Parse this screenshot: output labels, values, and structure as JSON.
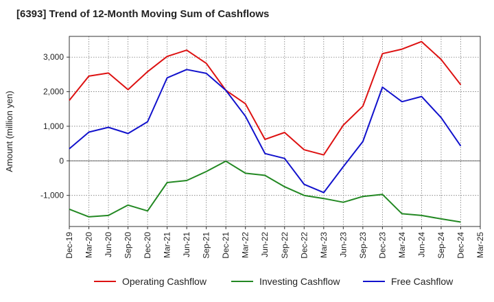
{
  "chart_data": {
    "type": "line",
    "title": "[6393]  Trend of 12-Month Moving Sum of Cashflows",
    "xlabel": "",
    "ylabel": "Amount (million yen)",
    "ylim": [
      -1900,
      3600
    ],
    "yticks": [
      -1000,
      0,
      1000,
      2000,
      3000
    ],
    "ytick_labels": [
      "-1,000",
      "0",
      "1,000",
      "2,000",
      "3,000"
    ],
    "categories": [
      "Dec-19",
      "Mar-20",
      "Jun-20",
      "Sep-20",
      "Dec-20",
      "Mar-21",
      "Jun-21",
      "Sep-21",
      "Dec-21",
      "Mar-22",
      "Jun-22",
      "Sep-22",
      "Dec-22",
      "Mar-23",
      "Jun-23",
      "Sep-23",
      "Dec-23",
      "Mar-24",
      "Jun-24",
      "Sep-24",
      "Dec-24",
      "Mar-25"
    ],
    "grid": true,
    "legend_position": "bottom",
    "series": [
      {
        "name": "Operating Cashflow",
        "color": "#dd1111",
        "values": [
          1750,
          2450,
          2540,
          2060,
          2580,
          3020,
          3200,
          2820,
          2040,
          1650,
          620,
          820,
          320,
          170,
          1030,
          1580,
          3100,
          3230,
          3450,
          2930,
          2200,
          null
        ]
      },
      {
        "name": "Investing Cashflow",
        "color": "#228822",
        "values": [
          -1400,
          -1620,
          -1580,
          -1280,
          -1450,
          -630,
          -570,
          -310,
          -10,
          -360,
          -420,
          -750,
          -1000,
          -1090,
          -1200,
          -1030,
          -970,
          -1530,
          -1580,
          -1680,
          -1770,
          null
        ]
      },
      {
        "name": "Free Cashflow",
        "color": "#1111cc",
        "values": [
          350,
          830,
          970,
          790,
          1130,
          2400,
          2640,
          2530,
          2040,
          1290,
          210,
          70,
          -680,
          -920,
          -170,
          560,
          2130,
          1710,
          1860,
          1250,
          430,
          null
        ]
      }
    ]
  }
}
